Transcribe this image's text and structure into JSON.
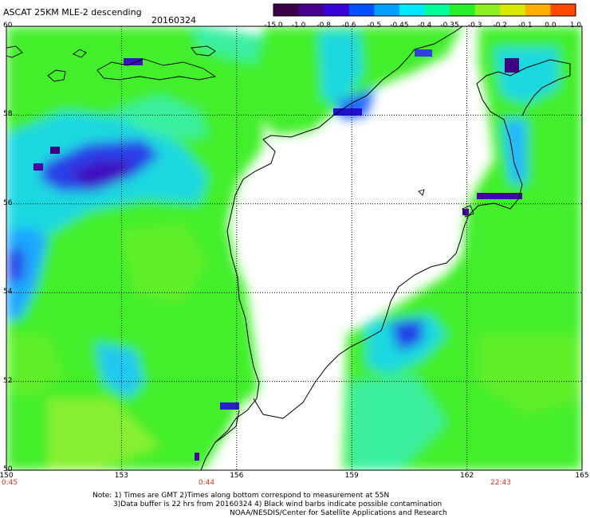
{
  "header": {
    "title": "ASCAT 25KM MLE-2 descending",
    "date": "20160324"
  },
  "colorbar": {
    "tick_labels": [
      "-15.0",
      "-1.0",
      "-0.8",
      "-0.6",
      "-0.5",
      "-0.45",
      "-0.4",
      "-0.35",
      "-0.3",
      "-0.2",
      "-0.1",
      "0.0",
      "1.0"
    ],
    "colors": [
      "#3a0048",
      "#46008c",
      "#3a00d8",
      "#0050ff",
      "#00a0ff",
      "#00e8ff",
      "#00ff9a",
      "#28f028",
      "#8ef020",
      "#d8e800",
      "#ffb000",
      "#ff4800"
    ]
  },
  "map": {
    "x_ticks": [
      "150",
      "153",
      "156",
      "159",
      "162",
      "165"
    ],
    "y_ticks": [
      "60",
      "58",
      "56",
      "54",
      "52",
      "50"
    ],
    "lon_range": [
      150,
      165
    ],
    "lat_range": [
      50,
      60
    ],
    "gridlines": "dotted",
    "times": [
      "0:45",
      "0:44",
      "22:43"
    ]
  },
  "footer": {
    "note_line1": "Note: 1) Times are GMT 2)Times along bottom correspond to measurement at 55N",
    "note_line2": "3)Data buffer is 22 hrs from 20160324 4) Black wind barbs indicate possible contamination",
    "credit": "NOAA/NESDIS/Center for Satellite Applications and Research"
  }
}
